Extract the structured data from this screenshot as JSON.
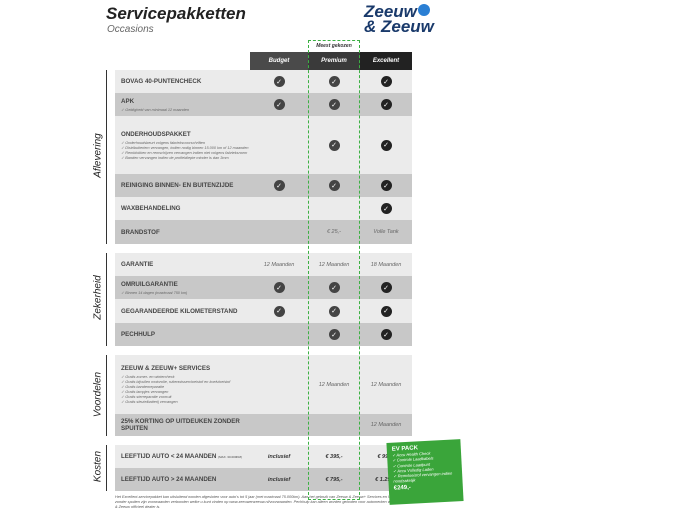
{
  "title": "Servicepakketten",
  "subtitle": "Occasions",
  "logo": {
    "line1": "Zeeuw",
    "line2": "& Zeeuw"
  },
  "most_chosen": "Meest gekozen",
  "columns": [
    "Budget",
    "Premium",
    "Excellent"
  ],
  "colors": {
    "accent": "#3aa53a",
    "row_light": "#ebebeb",
    "row_dark": "#c8c8c8"
  },
  "sections": {
    "aflevering": "Aflevering",
    "zekerheid": "Zekerheid",
    "voordelen": "Voordelen",
    "kosten": "Kosten"
  },
  "rows": [
    {
      "label": "BOVAG 40-PUNTENCHECK",
      "values": [
        "check",
        "check",
        "check"
      ]
    },
    {
      "label": "APK",
      "notes": [
        "Geldigheid van minimaal 12 maanden"
      ],
      "values": [
        "check",
        "check",
        "check"
      ]
    },
    {
      "label": "ONDERHOUDSPAKKET",
      "notes": [
        "Onderhoudsbeurt volgens fabrieksvoorschriften",
        "Distributieriem vervangen, indien nodig binnen 15.000 km of 12 maanden",
        "Remblokken en remschijven vervangen indien niet volgens fabrieksnorm",
        "Banden vervangen indien de profieldiepte minder is dan 3mm"
      ],
      "values": [
        "",
        "check",
        "check"
      ]
    },
    {
      "label": "REINIGING BINNEN- EN BUITENZIJDE",
      "values": [
        "check",
        "check",
        "check"
      ]
    },
    {
      "label": "WAXBEHANDELING",
      "values": [
        "",
        "",
        "check"
      ]
    },
    {
      "label": "BRANDSTOF",
      "values": [
        "",
        "€ 25,-",
        "Volle Tank"
      ]
    },
    {
      "label": "GARANTIE",
      "values": [
        "12 Maanden",
        "12 Maanden",
        "18 Maanden"
      ]
    },
    {
      "label": "OMRUILGARANTIE",
      "notes": [
        "Binnen 14 dagen (maximaal 750 km)"
      ],
      "values": [
        "check",
        "check",
        "check"
      ]
    },
    {
      "label": "GEGARANDEERDE KILOMETERSTAND",
      "values": [
        "check",
        "check",
        "check"
      ]
    },
    {
      "label": "PECHHULP",
      "values": [
        "",
        "check",
        "check"
      ]
    },
    {
      "label": "ZEEUW & ZEEUW+ SERVICES",
      "notes": [
        "Gratis zomer- en wintercheck",
        "Gratis bijvullen motorolie, ruitenwisservloeistof en koelvloeistof",
        "Gratis bandenreparatie",
        "Gratis lampjes vervangen",
        "Gratis sterreparatie voorruit",
        "Gratis sleutelbatterij vervangen"
      ],
      "values": [
        "",
        "12 Maanden",
        "12 Maanden"
      ]
    },
    {
      "label": "25% KORTING OP UITDEUKEN ZONDER SPUITEN",
      "values": [
        "",
        "",
        "12 Maanden"
      ]
    },
    {
      "label": "LEEFTIJD AUTO < 24 MAANDEN",
      "sub": "(MAX. 30.000KM)",
      "values": [
        "inclusief",
        "€ 395,-",
        "€ 995,-"
      ]
    },
    {
      "label": "LEEFTIJD AUTO > 24 MAANDEN",
      "values": [
        "inclusief",
        "€ 795,-",
        "€ 1.295,-"
      ]
    }
  ],
  "ev_pack": {
    "title": "EV PACK",
    "items": [
      "Accu Health Check",
      "Controle Laadkabels",
      "Controle Laadpunt",
      "Accu Volledig Laden",
      "Remvloeistof vervangen indien noodzakelijk"
    ],
    "price": "€249,-"
  },
  "footnote": "Het Excellent-servicepakket kan uitsluitend worden afgesloten voor auto's tot 5 jaar (met maximaal 75.000km). Aan het gebruik van Zeeuw & Zeeuw+ Services en Uitdeuken zonder spuiten zijn voorwaarden verbonden welke u kunt vinden op www.zeeuwenzeeuw.nl/voorwaarden. Pechhulp kan alleen worden geboden voor automerken waarvan Zeeuw & Zeeuw officieel dealer is."
}
